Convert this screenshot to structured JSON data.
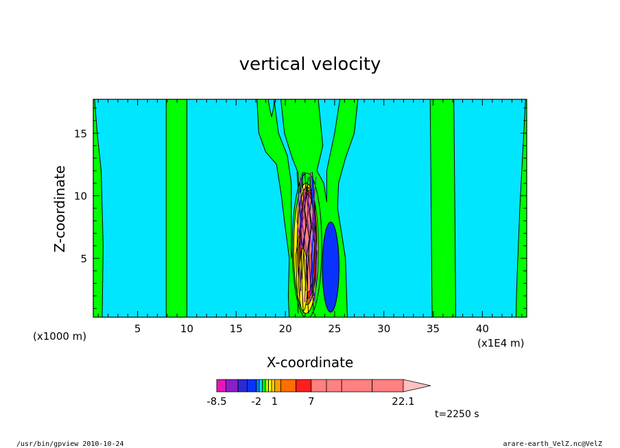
{
  "chart_data": {
    "type": "heatmap",
    "title": "vertical velocity",
    "xlabel": "X-coordinate",
    "ylabel": "Z-coordinate",
    "x_unit": "(x1000 m)",
    "x_scale_note": "(x1E4 m)",
    "xlim": [
      0.5,
      44.5
    ],
    "ylim": [
      0.3,
      17.7
    ],
    "x_ticks": [
      5,
      10,
      15,
      20,
      25,
      30,
      35,
      40
    ],
    "y_ticks": [
      5,
      10,
      15
    ],
    "colorbar": {
      "levels": [
        -8.5,
        -7,
        -5,
        -3.5,
        -2,
        -1.5,
        -1,
        -0.5,
        0,
        0.5,
        1,
        2,
        4.5,
        7,
        9.5,
        12,
        17,
        22.1
      ],
      "labels": [
        -8.5,
        -2,
        1,
        7,
        22.1
      ],
      "colors": [
        "#e617b8",
        "#8a1ec8",
        "#2a2ad2",
        "#0a32ff",
        "#0082ff",
        "#00e6ff",
        "#00ff00",
        "#b4ff00",
        "#ffff00",
        "#ffd200",
        "#ffa000",
        "#ff6e00",
        "#ff1e1e",
        "#ff8080"
      ],
      "extend": "max"
    },
    "regions": [
      {
        "name": "background",
        "value": "0 to 0.5",
        "color": "#00e6ff"
      },
      {
        "name": "band-x8-10",
        "value": "0.5 to 1",
        "color": "#00ff00"
      },
      {
        "name": "band-x35-37",
        "value": "0.5 to 1",
        "color": "#00ff00"
      },
      {
        "name": "right-edge-band",
        "value": "0.5 to 1",
        "color": "#00ff00"
      },
      {
        "name": "left-edge-band",
        "value": "0.5 to 1",
        "color": "#00ff00"
      },
      {
        "name": "plume-x17-28",
        "value": "0.5 to 1",
        "color": "#00ff00"
      },
      {
        "name": "updraft-core-x22",
        "value": "up to 22.1",
        "color": "#ff8080"
      },
      {
        "name": "downdraft-x24.6",
        "value": "-2 to -1.5",
        "color": "#0a32ff"
      }
    ]
  },
  "footer": {
    "time": "t=2250 s",
    "left_note": "/usr/bin/gpview   2010-10-24",
    "right_note": "arare-earth_VelZ.nc@VelZ"
  }
}
